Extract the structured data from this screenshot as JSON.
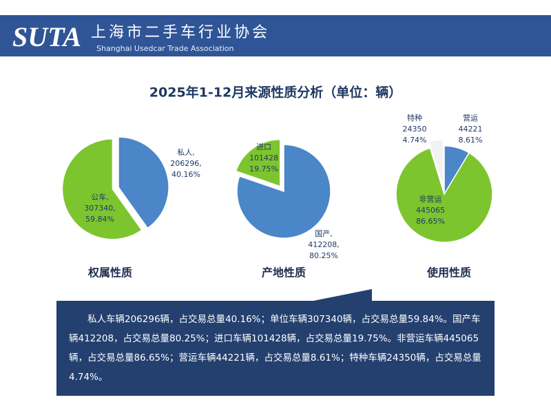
{
  "header": {
    "logo": "SUTA",
    "name": "上海市二手车行业协会",
    "name_en": "Shanghai Usedcar Trade Association"
  },
  "title": "2025年1-12月来源性质分析（单位：辆）",
  "chart_data": [
    {
      "type": "pie",
      "title": "权属性质",
      "categories": [
        "私人,",
        "公车,"
      ],
      "values": [
        206296,
        307340
      ],
      "value_labels": [
        "206296,",
        "307340,"
      ],
      "percents": [
        {
          "value": 40.16,
          "label": "40.16%"
        },
        {
          "value": 59.84,
          "label": "59.84%"
        }
      ],
      "colors": [
        "#4a86c8",
        "#7dc52e"
      ],
      "explode": [
        false,
        true
      ]
    },
    {
      "type": "pie",
      "title": "产地性质",
      "categories": [
        "国产,",
        "进口"
      ],
      "values": [
        412208,
        101428
      ],
      "value_labels": [
        "412208,",
        "101428"
      ],
      "percents": [
        {
          "value": 80.25,
          "label": "80.25%"
        },
        {
          "value": 19.75,
          "label": "19.75%"
        }
      ],
      "colors": [
        "#4a86c8",
        "#7dc52e"
      ],
      "explode": [
        false,
        true
      ]
    },
    {
      "type": "pie",
      "title": "使用性质",
      "categories": [
        "营运",
        "非营运",
        "特种"
      ],
      "values": [
        44221,
        445065,
        24350
      ],
      "percents": [
        {
          "value": 8.61,
          "label": "8.61%"
        },
        {
          "value": 86.65,
          "label": "86.65%"
        },
        {
          "value": 4.74,
          "label": "4.74%"
        }
      ],
      "colors": [
        "#4a86c8",
        "#7dc52e",
        "#f2f2f2"
      ],
      "explode": [
        false,
        false,
        true
      ]
    }
  ],
  "summary": "私人车辆206296辆，占交易总量40.16%；单位车辆307340辆，占交易总量59.84%。国产车辆412208，占交易总量80.25%；进口车辆101428辆，占交易总量19.75%。非营运车辆445065辆，占交易总量86.65%；营运车辆44221辆，占交易总量8.61%；特种车辆24350辆，占交易总量4.74%。"
}
